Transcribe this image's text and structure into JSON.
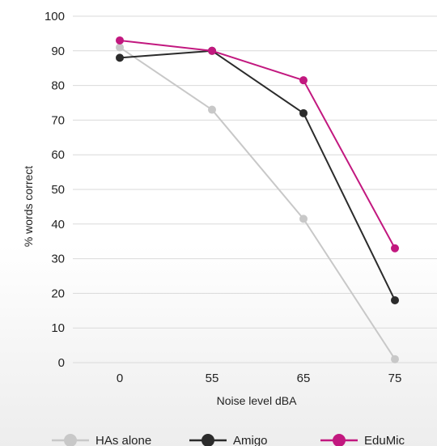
{
  "chart_data": {
    "type": "line",
    "title": "",
    "xlabel": "Noise level dBA",
    "ylabel": "% words correct",
    "categories": [
      "0",
      "55",
      "65",
      "75"
    ],
    "ylim": [
      0,
      100
    ],
    "yticks": [
      0,
      10,
      20,
      30,
      40,
      50,
      60,
      70,
      80,
      90,
      100
    ],
    "grid": "horizontal",
    "legend_position": "bottom",
    "series": [
      {
        "name": "HAs alone",
        "color": "#c8c8c8",
        "values": [
          91,
          73,
          41.5,
          1
        ]
      },
      {
        "name": "Amigo",
        "color": "#2b2b2b",
        "values": [
          88,
          90,
          72,
          18
        ]
      },
      {
        "name": "EduMic",
        "color": "#c2187f",
        "values": [
          93,
          90,
          81.5,
          33
        ]
      }
    ]
  }
}
